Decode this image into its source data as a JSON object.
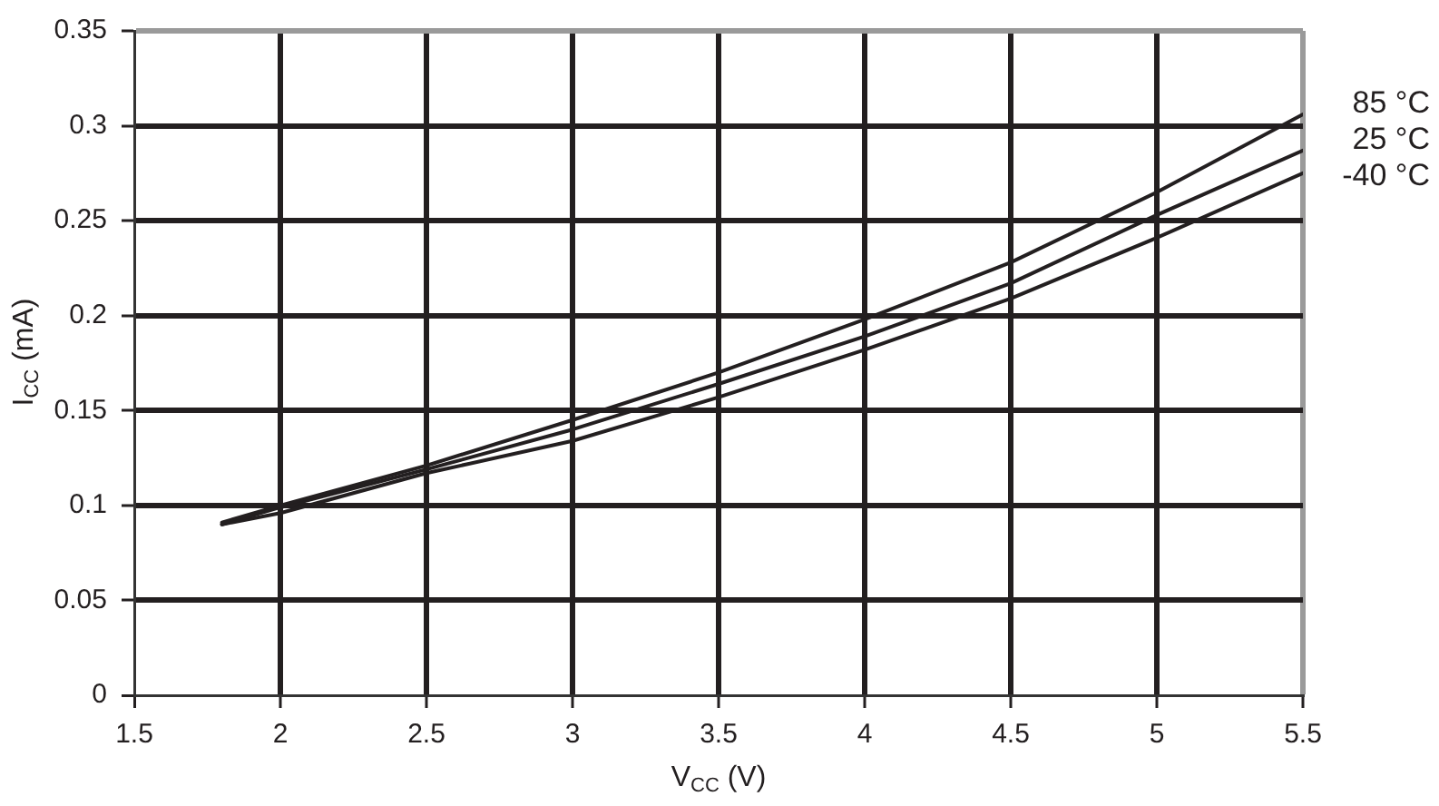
{
  "chart_data": {
    "type": "line",
    "xlabel": "V$_{CC}$ (V)",
    "ylabel": "I$_{CC}$ (mA)",
    "x": [
      1.8,
      2,
      2.5,
      3,
      3.5,
      4,
      4.5,
      5,
      5.5
    ],
    "series": [
      {
        "name": "85 °C",
        "color": "#231f20",
        "values": [
          0.091,
          0.1,
          0.121,
          0.145,
          0.17,
          0.198,
          0.228,
          0.265,
          0.306
        ]
      },
      {
        "name": "25 °C",
        "color": "#231f20",
        "values": [
          0.09,
          0.099,
          0.119,
          0.14,
          0.164,
          0.189,
          0.217,
          0.253,
          0.287
        ]
      },
      {
        "name": "-40 °C",
        "color": "#231f20",
        "values": [
          0.09,
          0.096,
          0.117,
          0.134,
          0.157,
          0.182,
          0.209,
          0.241,
          0.275
        ]
      }
    ],
    "xlim": [
      1.5,
      5.5
    ],
    "xticks": [
      1.5,
      2,
      2.5,
      3,
      3.5,
      4,
      4.5,
      5,
      5.5
    ],
    "ylim": [
      0,
      0.35
    ],
    "yticks": [
      0,
      0.05,
      0.1,
      0.15,
      0.2,
      0.25,
      0.3,
      0.35
    ],
    "grid": true,
    "marker": "none",
    "line_style": "solid"
  }
}
